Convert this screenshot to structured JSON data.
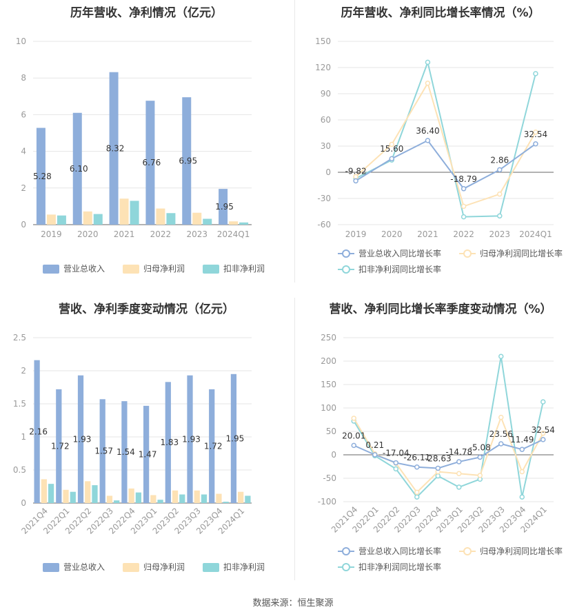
{
  "source": "数据来源：恒生聚源",
  "colors": {
    "revenue": "#8eaedb",
    "net_profit": "#fde2b5",
    "deducted": "#8fd6da",
    "axis": "#999999",
    "grid": "#e6e6e6",
    "label": "#333333"
  },
  "chart_data": [
    {
      "type": "bar",
      "title": "历年营收、净利情况（亿元）",
      "categories": [
        "2019",
        "2020",
        "2021",
        "2022",
        "2023",
        "2024Q1"
      ],
      "series": [
        {
          "name": "营业总收入",
          "values": [
            5.28,
            6.1,
            8.32,
            6.76,
            6.95,
            1.95
          ],
          "labels": [
            "5.28",
            "6.10",
            "8.32",
            "6.76",
            "6.95",
            "1.95"
          ]
        },
        {
          "name": "归母净利润",
          "values": [
            0.55,
            0.72,
            1.42,
            0.88,
            0.65,
            0.18
          ]
        },
        {
          "name": "扣非净利润",
          "values": [
            0.5,
            0.58,
            1.3,
            0.63,
            0.32,
            0.12
          ]
        }
      ],
      "ylim": [
        0,
        10
      ],
      "yticks": [
        "0",
        "2",
        "4",
        "6",
        "8",
        "10"
      ],
      "legend": "bottom"
    },
    {
      "type": "line",
      "title": "历年营收、净利同比增长率情况（%）",
      "categories": [
        "2019",
        "2020",
        "2021",
        "2022",
        "2023",
        "2024Q1"
      ],
      "series": [
        {
          "name": "营业总收入同比增长率",
          "values": [
            -9.82,
            15.6,
            36.4,
            -18.79,
            2.86,
            32.54
          ],
          "labels": [
            "-9.82",
            "15.60",
            "36.40",
            "-18.79",
            "2.86",
            "32.54"
          ]
        },
        {
          "name": "归母净利润同比增长率",
          "values": [
            -5,
            32,
            102,
            -39,
            -25,
            46
          ]
        },
        {
          "name": "扣非净利润同比增长率",
          "values": [
            -7,
            14,
            126,
            -51,
            -50,
            113
          ]
        }
      ],
      "ylim": [
        -60,
        150
      ],
      "yticks": [
        "-60",
        "-30",
        "0",
        "30",
        "60",
        "90",
        "120",
        "150"
      ],
      "legend": "bottom"
    },
    {
      "type": "bar",
      "title": "营收、净利季度变动情况（亿元）",
      "categories": [
        "2021Q4",
        "2022Q1",
        "2022Q2",
        "2022Q3",
        "2022Q4",
        "2023Q1",
        "2023Q2",
        "2023Q3",
        "2023Q4",
        "2024Q1"
      ],
      "series": [
        {
          "name": "营业总收入",
          "values": [
            2.16,
            1.72,
            1.93,
            1.57,
            1.54,
            1.47,
            1.83,
            1.93,
            1.72,
            1.95
          ],
          "labels": [
            "2.16",
            "1.72",
            "1.93",
            "1.57",
            "1.54",
            "1.47",
            "1.83",
            "1.93",
            "1.72",
            "1.95"
          ]
        },
        {
          "name": "归母净利润",
          "values": [
            0.36,
            0.2,
            0.33,
            0.11,
            0.22,
            0.12,
            0.19,
            0.19,
            0.14,
            0.17
          ]
        },
        {
          "name": "扣非净利润",
          "values": [
            0.29,
            0.17,
            0.27,
            0.04,
            0.16,
            0.05,
            0.13,
            0.13,
            0.02,
            0.11
          ]
        }
      ],
      "ylim": [
        0,
        2.5
      ],
      "yticks": [
        "0",
        "0.5",
        "1",
        "1.5",
        "2",
        "2.5"
      ],
      "legend": "bottom"
    },
    {
      "type": "line",
      "title": "营收、净利同比增长率季度变动情况（%）",
      "categories": [
        "2021Q4",
        "2022Q1",
        "2022Q2",
        "2022Q3",
        "2022Q4",
        "2023Q1",
        "2023Q2",
        "2023Q3",
        "2023Q4",
        "2024Q1"
      ],
      "series": [
        {
          "name": "营业总收入同比增长率",
          "values": [
            20.01,
            0.21,
            -17.04,
            -26.11,
            -28.63,
            -14.78,
            -5.08,
            23.56,
            11.49,
            32.54
          ],
          "labels": [
            "20.01",
            "0.21",
            "-17.04",
            "-26.11",
            "-28.63",
            "-14.78",
            "-5.08",
            "23.56",
            "11.49",
            "32.54"
          ]
        },
        {
          "name": "归母净利润同比增长率",
          "values": [
            78,
            2,
            -18,
            -80,
            -36,
            -40,
            -44,
            80,
            -36,
            46
          ]
        },
        {
          "name": "扣非净利润同比增长率",
          "values": [
            72,
            -2,
            -30,
            -90,
            -45,
            -69,
            -52,
            210,
            -90,
            113
          ]
        }
      ],
      "ylim": [
        -100,
        250
      ],
      "yticks": [
        "-100",
        "-50",
        "0",
        "50",
        "100",
        "150",
        "200",
        "250"
      ],
      "legend": "bottom"
    }
  ]
}
